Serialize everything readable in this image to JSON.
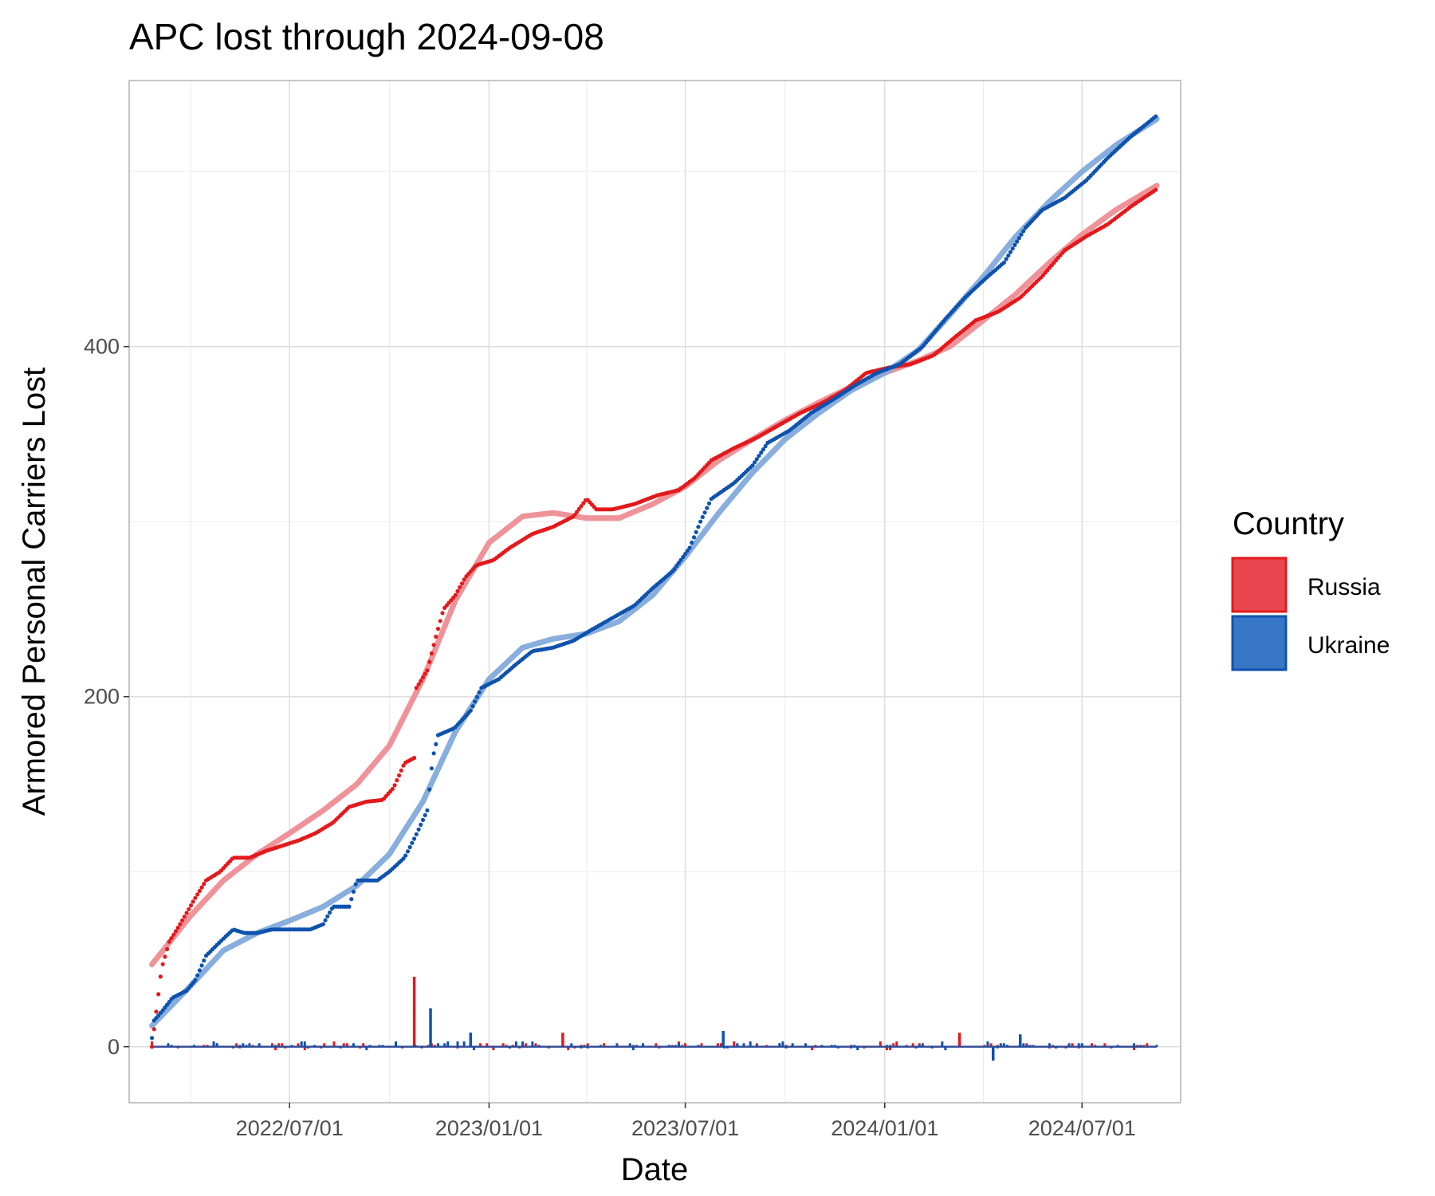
{
  "chart_data": {
    "type": "line",
    "title": "APC lost through 2024-09-08",
    "xlabel": "Date",
    "ylabel": "Armored Personal Carriers Lost",
    "x_range": [
      "2022-02-24",
      "2024-09-08"
    ],
    "xlim": [
      "2022-02-03",
      "2024-09-30"
    ],
    "ylim": [
      -32,
      552
    ],
    "x_ticks": [
      "2022/07/01",
      "2023/01/01",
      "2023/07/01",
      "2024/01/01",
      "2024/07/01"
    ],
    "y_ticks": [
      0,
      200,
      400
    ],
    "grid": true,
    "legend": {
      "title": "Country",
      "position": "right",
      "entries": [
        {
          "label": "Russia",
          "fill": "#e8474f",
          "stroke": "#e3191c"
        },
        {
          "label": "Ukraine",
          "fill": "#3876c6",
          "stroke": "#0e52ad"
        }
      ]
    },
    "series": [
      {
        "name": "Russia",
        "color": "#e3191c",
        "trend_color": "#ed8d93",
        "cumulative": [
          [
            "2022-02-24",
            0
          ],
          [
            "2022-02-28",
            20
          ],
          [
            "2022-03-05",
            45
          ],
          [
            "2022-03-12",
            60
          ],
          [
            "2022-03-22",
            70
          ],
          [
            "2022-04-05",
            85
          ],
          [
            "2022-04-15",
            95
          ],
          [
            "2022-04-28",
            100
          ],
          [
            "2022-05-10",
            108
          ],
          [
            "2022-05-25",
            108
          ],
          [
            "2022-06-10",
            112
          ],
          [
            "2022-06-25",
            115
          ],
          [
            "2022-07-10",
            118
          ],
          [
            "2022-07-25",
            122
          ],
          [
            "2022-08-10",
            128
          ],
          [
            "2022-08-25",
            137
          ],
          [
            "2022-09-10",
            140
          ],
          [
            "2022-09-25",
            141
          ],
          [
            "2022-10-05",
            148
          ],
          [
            "2022-10-15",
            162
          ],
          [
            "2022-10-24",
            165
          ],
          [
            "2022-10-26",
            205
          ],
          [
            "2022-11-05",
            215
          ],
          [
            "2022-11-12",
            232
          ],
          [
            "2022-11-20",
            250
          ],
          [
            "2022-12-01",
            258
          ],
          [
            "2022-12-10",
            268
          ],
          [
            "2022-12-20",
            275
          ],
          [
            "2023-01-05",
            278
          ],
          [
            "2023-01-20",
            285
          ],
          [
            "2023-02-10",
            293
          ],
          [
            "2023-03-01",
            297
          ],
          [
            "2023-03-20",
            303
          ],
          [
            "2023-04-01",
            313
          ],
          [
            "2023-04-10",
            307
          ],
          [
            "2023-04-25",
            307
          ],
          [
            "2023-05-15",
            310
          ],
          [
            "2023-06-05",
            315
          ],
          [
            "2023-06-25",
            318
          ],
          [
            "2023-07-10",
            325
          ],
          [
            "2023-07-25",
            335
          ],
          [
            "2023-08-15",
            342
          ],
          [
            "2023-09-05",
            348
          ],
          [
            "2023-09-25",
            355
          ],
          [
            "2023-10-15",
            362
          ],
          [
            "2023-11-05",
            368
          ],
          [
            "2023-11-25",
            375
          ],
          [
            "2023-12-15",
            385
          ],
          [
            "2024-01-05",
            388
          ],
          [
            "2024-01-25",
            390
          ],
          [
            "2024-02-15",
            395
          ],
          [
            "2024-03-05",
            405
          ],
          [
            "2024-03-25",
            415
          ],
          [
            "2024-04-15",
            420
          ],
          [
            "2024-05-05",
            428
          ],
          [
            "2024-05-25",
            440
          ],
          [
            "2024-06-15",
            455
          ],
          [
            "2024-07-05",
            463
          ],
          [
            "2024-07-25",
            470
          ],
          [
            "2024-08-15",
            480
          ],
          [
            "2024-09-08",
            490
          ]
        ],
        "trend": [
          [
            "2022-02-24",
            47
          ],
          [
            "2022-04-01",
            75
          ],
          [
            "2022-05-01",
            95
          ],
          [
            "2022-06-01",
            110
          ],
          [
            "2022-07-01",
            122
          ],
          [
            "2022-08-01",
            135
          ],
          [
            "2022-09-01",
            150
          ],
          [
            "2022-10-01",
            172
          ],
          [
            "2022-11-01",
            210
          ],
          [
            "2022-12-01",
            255
          ],
          [
            "2023-01-01",
            288
          ],
          [
            "2023-02-01",
            303
          ],
          [
            "2023-03-01",
            305
          ],
          [
            "2023-04-01",
            302
          ],
          [
            "2023-05-01",
            302
          ],
          [
            "2023-06-01",
            310
          ],
          [
            "2023-07-01",
            320
          ],
          [
            "2023-08-01",
            335
          ],
          [
            "2023-09-01",
            347
          ],
          [
            "2023-10-01",
            358
          ],
          [
            "2023-11-01",
            368
          ],
          [
            "2023-12-01",
            377
          ],
          [
            "2024-01-01",
            385
          ],
          [
            "2024-02-01",
            392
          ],
          [
            "2024-03-01",
            400
          ],
          [
            "2024-04-01",
            415
          ],
          [
            "2024-05-01",
            430
          ],
          [
            "2024-06-01",
            448
          ],
          [
            "2024-07-01",
            464
          ],
          [
            "2024-08-01",
            478
          ],
          [
            "2024-09-08",
            492
          ]
        ],
        "daily_spikes": [
          [
            "2022-10-24",
            40
          ],
          [
            "2023-03-10",
            8
          ],
          [
            "2024-03-10",
            8
          ]
        ]
      },
      {
        "name": "Ukraine",
        "color": "#0e52ad",
        "trend_color": "#81aadb",
        "cumulative": [
          [
            "2022-02-24",
            5
          ],
          [
            "2022-02-26",
            15
          ],
          [
            "2022-03-05",
            20
          ],
          [
            "2022-03-15",
            28
          ],
          [
            "2022-03-28",
            32
          ],
          [
            "2022-04-05",
            38
          ],
          [
            "2022-04-15",
            52
          ],
          [
            "2022-04-28",
            60
          ],
          [
            "2022-05-10",
            67
          ],
          [
            "2022-05-20",
            65
          ],
          [
            "2022-06-01",
            65
          ],
          [
            "2022-06-15",
            67
          ],
          [
            "2022-07-01",
            67
          ],
          [
            "2022-07-20",
            67
          ],
          [
            "2022-08-01",
            70
          ],
          [
            "2022-08-10",
            80
          ],
          [
            "2022-08-25",
            80
          ],
          [
            "2022-09-01",
            95
          ],
          [
            "2022-09-20",
            95
          ],
          [
            "2022-10-01",
            100
          ],
          [
            "2022-10-15",
            108
          ],
          [
            "2022-10-25",
            120
          ],
          [
            "2022-11-05",
            135
          ],
          [
            "2022-11-10",
            165
          ],
          [
            "2022-11-15",
            178
          ],
          [
            "2022-11-30",
            182
          ],
          [
            "2022-12-15",
            192
          ],
          [
            "2022-12-25",
            205
          ],
          [
            "2023-01-10",
            210
          ],
          [
            "2023-01-25",
            218
          ],
          [
            "2023-02-10",
            226
          ],
          [
            "2023-03-01",
            228
          ],
          [
            "2023-03-20",
            232
          ],
          [
            "2023-04-05",
            238
          ],
          [
            "2023-04-25",
            245
          ],
          [
            "2023-05-15",
            252
          ],
          [
            "2023-06-01",
            262
          ],
          [
            "2023-06-20",
            272
          ],
          [
            "2023-07-05",
            285
          ],
          [
            "2023-07-15",
            300
          ],
          [
            "2023-07-25",
            313
          ],
          [
            "2023-08-15",
            322
          ],
          [
            "2023-09-01",
            332
          ],
          [
            "2023-09-15",
            345
          ],
          [
            "2023-10-05",
            352
          ],
          [
            "2023-10-25",
            362
          ],
          [
            "2023-11-15",
            370
          ],
          [
            "2023-12-05",
            378
          ],
          [
            "2023-12-25",
            385
          ],
          [
            "2024-01-15",
            390
          ],
          [
            "2024-02-05",
            400
          ],
          [
            "2024-02-25",
            415
          ],
          [
            "2024-03-15",
            428
          ],
          [
            "2024-04-05",
            440
          ],
          [
            "2024-04-20",
            448
          ],
          [
            "2024-05-10",
            468
          ],
          [
            "2024-05-25",
            478
          ],
          [
            "2024-06-15",
            485
          ],
          [
            "2024-07-05",
            495
          ],
          [
            "2024-07-25",
            508
          ],
          [
            "2024-08-15",
            520
          ],
          [
            "2024-09-08",
            532
          ]
        ],
        "trend": [
          [
            "2022-02-24",
            12
          ],
          [
            "2022-04-01",
            35
          ],
          [
            "2022-05-01",
            55
          ],
          [
            "2022-06-01",
            65
          ],
          [
            "2022-07-01",
            72
          ],
          [
            "2022-08-01",
            80
          ],
          [
            "2022-09-01",
            92
          ],
          [
            "2022-10-01",
            110
          ],
          [
            "2022-11-01",
            140
          ],
          [
            "2022-12-01",
            180
          ],
          [
            "2023-01-01",
            210
          ],
          [
            "2023-02-01",
            228
          ],
          [
            "2023-03-01",
            233
          ],
          [
            "2023-04-01",
            236
          ],
          [
            "2023-05-01",
            243
          ],
          [
            "2023-06-01",
            258
          ],
          [
            "2023-07-01",
            280
          ],
          [
            "2023-08-01",
            305
          ],
          [
            "2023-09-01",
            328
          ],
          [
            "2023-10-01",
            347
          ],
          [
            "2023-11-01",
            362
          ],
          [
            "2023-12-01",
            375
          ],
          [
            "2024-01-01",
            385
          ],
          [
            "2024-02-01",
            398
          ],
          [
            "2024-03-01",
            418
          ],
          [
            "2024-04-01",
            440
          ],
          [
            "2024-05-01",
            463
          ],
          [
            "2024-06-01",
            483
          ],
          [
            "2024-07-01",
            500
          ],
          [
            "2024-08-01",
            515
          ],
          [
            "2024-09-08",
            530
          ]
        ],
        "daily_spikes": [
          [
            "2022-11-08",
            22
          ],
          [
            "2022-12-15",
            8
          ],
          [
            "2023-08-05",
            9
          ],
          [
            "2024-04-10",
            -8
          ],
          [
            "2024-05-05",
            7
          ]
        ]
      }
    ]
  }
}
